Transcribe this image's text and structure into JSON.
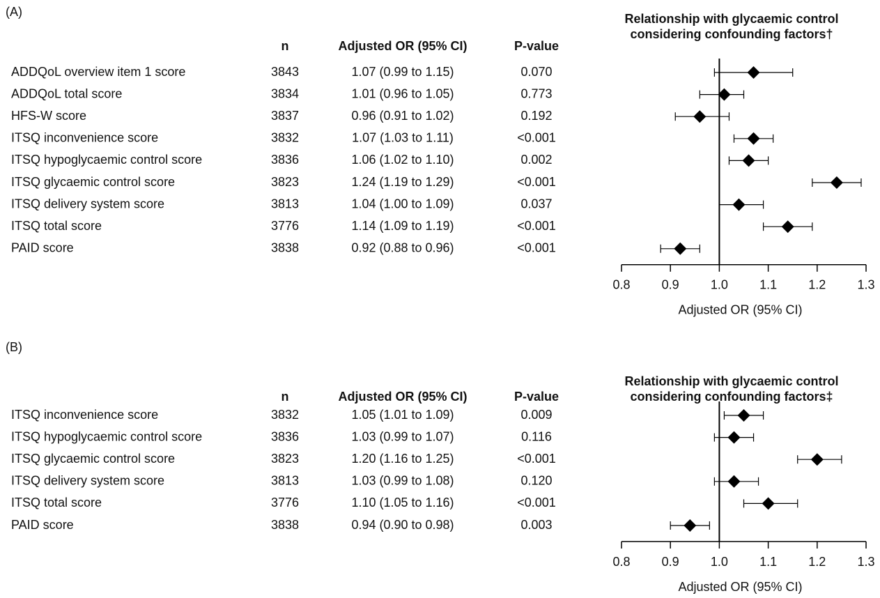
{
  "chart_data": [
    {
      "type": "forest",
      "panel": "(A)",
      "title": [
        "Relationship with glycaemic control",
        "considering confounding factors†"
      ],
      "columns": [
        "n",
        "Adjusted OR (95% CI)",
        "P-value"
      ],
      "categories": [
        "ADDQoL overview item 1 score",
        "ADDQoL total score",
        "HFS-W score",
        "ITSQ inconvenience score",
        "ITSQ hypoglycaemic control score",
        "ITSQ glycaemic control score",
        "ITSQ delivery system score",
        "ITSQ total score",
        "PAID score"
      ],
      "n": [
        3843,
        3834,
        3837,
        3832,
        3836,
        3823,
        3813,
        3776,
        3838
      ],
      "values": [
        1.07,
        1.01,
        0.96,
        1.07,
        1.06,
        1.24,
        1.04,
        1.14,
        0.92
      ],
      "lower": [
        0.99,
        0.96,
        0.91,
        1.03,
        1.02,
        1.19,
        1.0,
        1.09,
        0.88
      ],
      "upper": [
        1.15,
        1.05,
        1.02,
        1.11,
        1.1,
        1.29,
        1.09,
        1.19,
        0.96
      ],
      "value_labels": [
        "1.07 (0.99 to 1.15)",
        "1.01 (0.96 to 1.05)",
        "0.96 (0.91 to 1.02)",
        "1.07 (1.03 to 1.11)",
        "1.06 (1.02 to 1.10)",
        "1.24 (1.19 to 1.29)",
        "1.04 (1.00 to 1.09)",
        "1.14 (1.09 to 1.19)",
        "0.92 (0.88 to 0.96)"
      ],
      "p_values": [
        "0.070",
        "0.773",
        "0.192",
        "<0.001",
        "0.002",
        "<0.001",
        "0.037",
        "<0.001",
        "<0.001"
      ],
      "xlabel": "Adjusted OR (95% CI)",
      "xlim": [
        0.8,
        1.3
      ],
      "xticks": [
        0.8,
        0.9,
        {
          "value": 1,
          "label": "1.0"
        },
        1.1,
        1.2,
        1.3
      ],
      "reference": 1,
      "color": "#000000"
    },
    {
      "type": "forest",
      "panel": "(B)",
      "title": [
        "Relationship with glycaemic control",
        "considering confounding factors‡"
      ],
      "columns": [
        "n",
        "Adjusted OR (95% CI)",
        "P-value"
      ],
      "categories": [
        "ITSQ inconvenience score",
        "ITSQ hypoglycaemic control score",
        "ITSQ glycaemic control score",
        "ITSQ delivery system score",
        "ITSQ total score",
        "PAID score"
      ],
      "n": [
        3832,
        3836,
        3823,
        3813,
        3776,
        3838
      ],
      "values": [
        1.05,
        1.03,
        1.2,
        1.03,
        1.1,
        0.94
      ],
      "lower": [
        1.01,
        0.99,
        1.16,
        0.99,
        1.05,
        0.9
      ],
      "upper": [
        1.09,
        1.07,
        1.25,
        1.08,
        1.16,
        0.98
      ],
      "value_labels": [
        "1.05 (1.01 to 1.09)",
        "1.03 (0.99 to 1.07)",
        "1.20 (1.16 to 1.25)",
        "1.03 (0.99 to 1.08)",
        "1.10 (1.05 to 1.16)",
        "0.94 (0.90 to 0.98)"
      ],
      "p_values": [
        "0.009",
        "0.116",
        "<0.001",
        "0.120",
        "<0.001",
        "0.003"
      ],
      "xlabel": "Adjusted OR (95% CI)",
      "xlim": [
        0.8,
        1.3
      ],
      "xticks": [
        0.8,
        0.9,
        {
          "value": 1,
          "label": "1.0"
        },
        1.1,
        1.2,
        1.3
      ],
      "reference": 1,
      "color": "#000000"
    }
  ]
}
